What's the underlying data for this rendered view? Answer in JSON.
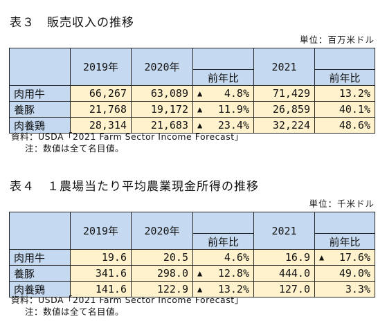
{
  "table3": {
    "title": "表３　販売収入の推移",
    "unit": "単位：百万米ドル",
    "headers": {
      "y2019": "2019年",
      "y2020": "2020年",
      "change1": "前年比",
      "y2021": "2021",
      "change2": "前年比"
    },
    "rows": [
      {
        "label": "肉用牛",
        "v2019": "66,267",
        "v2020": "63,089",
        "c1_mark": "▲",
        "c1": "4.8%",
        "v2021": "71,429",
        "c2_mark": "",
        "c2": "13.2%"
      },
      {
        "label": "養豚",
        "v2019": "21,768",
        "v2020": "19,172",
        "c1_mark": "▲",
        "c1": "11.9%",
        "v2021": "26,859",
        "c2_mark": "",
        "c2": "40.1%"
      },
      {
        "label": "肉養鶏",
        "v2019": "28,314",
        "v2020": "21,683",
        "c1_mark": "▲",
        "c1": "23.4%",
        "v2021": "32,224",
        "c2_mark": "",
        "c2": "48.6%"
      }
    ],
    "source": "資料：USDA「2021 Farm Sector Income Forecast」",
    "note": "注：数値は全て名目値。"
  },
  "table4": {
    "title": "表４　１農場当たり平均農業現金所得の推移",
    "unit": "単位：千米ドル",
    "headers": {
      "y2019": "2019年",
      "y2020": "2020年",
      "change1": "前年比",
      "y2021": "2021",
      "change2": "前年比"
    },
    "rows": [
      {
        "label": "肉用牛",
        "v2019": "19.6",
        "v2020": "20.5",
        "c1_mark": "",
        "c1": "4.6%",
        "v2021": "16.9",
        "c2_mark": "▲",
        "c2": "17.6%"
      },
      {
        "label": "養豚",
        "v2019": "341.6",
        "v2020": "298.0",
        "c1_mark": "▲",
        "c1": "12.8%",
        "v2021": "444.0",
        "c2_mark": "",
        "c2": "49.0%"
      },
      {
        "label": "肉養鶏",
        "v2019": "141.6",
        "v2020": "122.9",
        "c1_mark": "▲",
        "c1": "13.2%",
        "v2021": "127.0",
        "c2_mark": "",
        "c2": "3.3%"
      }
    ],
    "source": "資料：USDA「2021 Farm Sector Income Forecast」",
    "note": "注：数値は全て名目値。"
  },
  "colors": {
    "header_bg": "#c5d9f1",
    "value_bg": "#fff2cc",
    "border": "#222222"
  }
}
